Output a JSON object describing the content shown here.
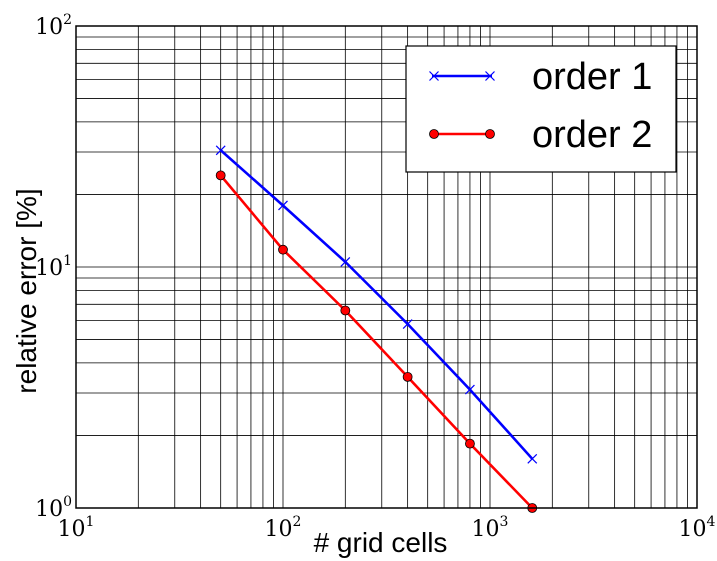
{
  "chart_data": {
    "type": "line",
    "xscale": "log",
    "yscale": "log",
    "xlim": [
      10,
      10000
    ],
    "ylim": [
      1,
      100
    ],
    "xlabel": "# grid cells",
    "ylabel": "relative error [%]",
    "grid": "major+minor",
    "legend_position": "top-right",
    "x_ticks": [
      {
        "base": "10",
        "exp": "1",
        "value": 10
      },
      {
        "base": "10",
        "exp": "2",
        "value": 100
      },
      {
        "base": "10",
        "exp": "3",
        "value": 1000
      },
      {
        "base": "10",
        "exp": "4",
        "value": 10000
      }
    ],
    "y_ticks": [
      {
        "base": "10",
        "exp": "0",
        "value": 1
      },
      {
        "base": "10",
        "exp": "1",
        "value": 10
      },
      {
        "base": "10",
        "exp": "2",
        "value": 100
      }
    ],
    "series": [
      {
        "name": "order 1",
        "color": "#0000ff",
        "marker": "x",
        "x": [
          50,
          100,
          200,
          400,
          800,
          1600
        ],
        "y": [
          30.5,
          18.0,
          10.5,
          5.8,
          3.1,
          1.6
        ]
      },
      {
        "name": "order 2",
        "color": "#ff0000",
        "marker": "o",
        "x": [
          50,
          100,
          200,
          400,
          800,
          1600
        ],
        "y": [
          24.0,
          11.8,
          6.6,
          3.5,
          1.85,
          1.0
        ]
      }
    ]
  }
}
